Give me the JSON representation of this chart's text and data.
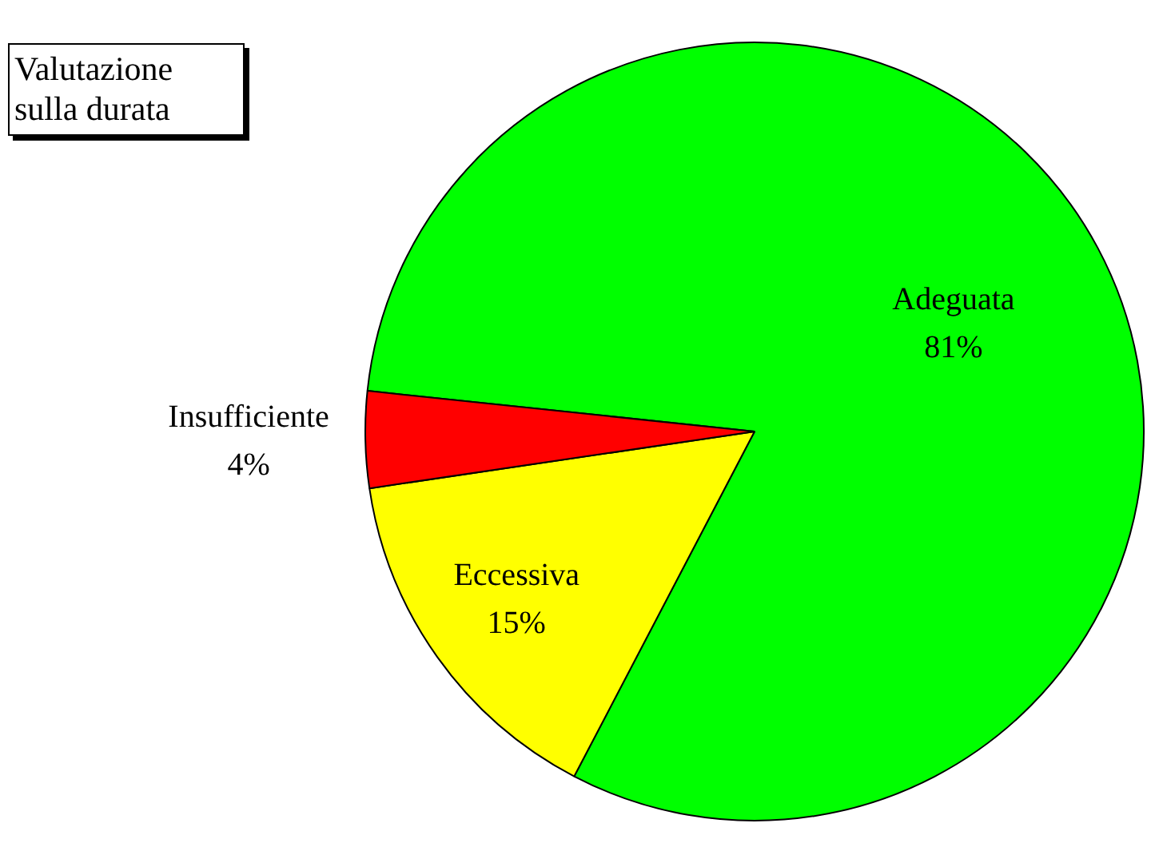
{
  "chart_data": {
    "type": "pie",
    "title": "Valutazione sulla durata",
    "categories": [
      "Adeguata",
      "Eccessiva",
      "Insufficiente"
    ],
    "values": [
      81,
      15,
      4
    ],
    "value_labels": [
      "81%",
      "15%",
      "4%"
    ],
    "colors": [
      "#00ff00",
      "#ffff00",
      "#ff0000"
    ],
    "legend": false
  }
}
